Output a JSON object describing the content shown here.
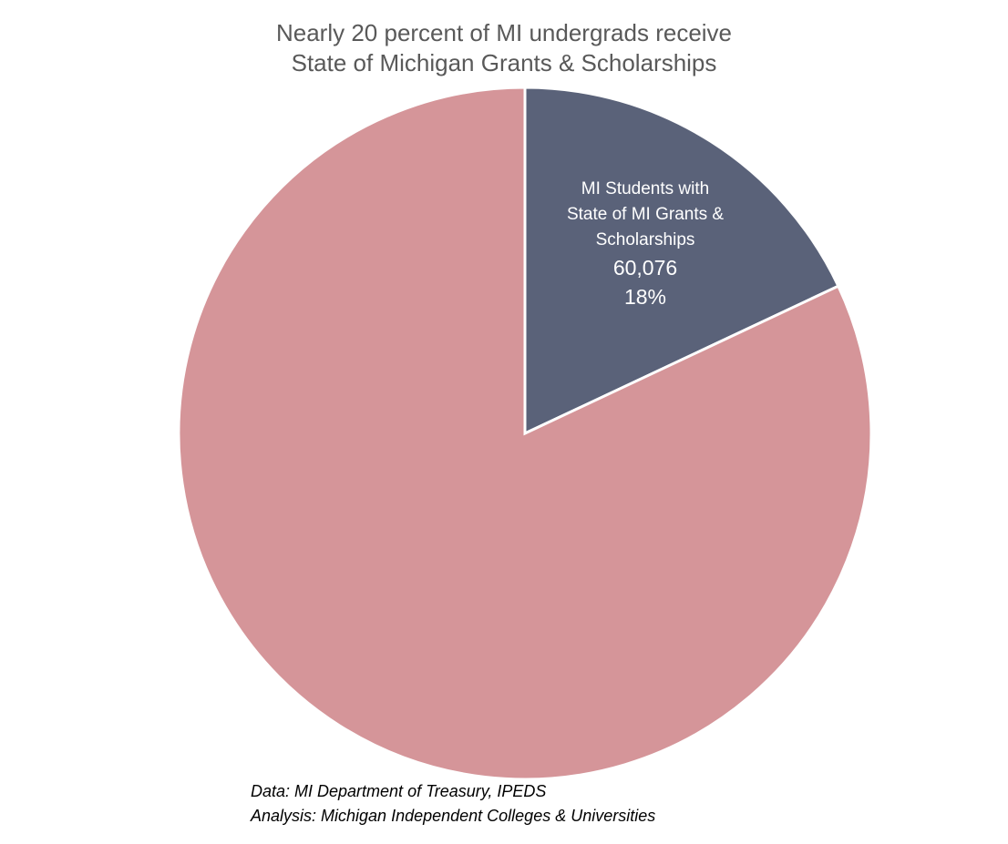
{
  "chart_data": {
    "type": "pie",
    "title": [
      "Nearly 20 percent of MI undergrads receive",
      "State of Michigan Grants & Scholarships"
    ],
    "slices": [
      {
        "label_lines": [
          "MI Students with",
          "State of MI Grants &",
          "Scholarships"
        ],
        "value": 60076,
        "value_label": "60,076",
        "percent": 18,
        "percent_label": "18%",
        "color": "#5A6279"
      },
      {
        "label_lines": [],
        "percent": 82,
        "color": "#D59599"
      }
    ],
    "start_angle": "12 o'clock, clockwise",
    "legend": "none"
  },
  "source": {
    "data": "Data: MI Department of Treasury, IPEDS",
    "analysis": "Analysis: Michigan Independent Colleges & Universities"
  }
}
